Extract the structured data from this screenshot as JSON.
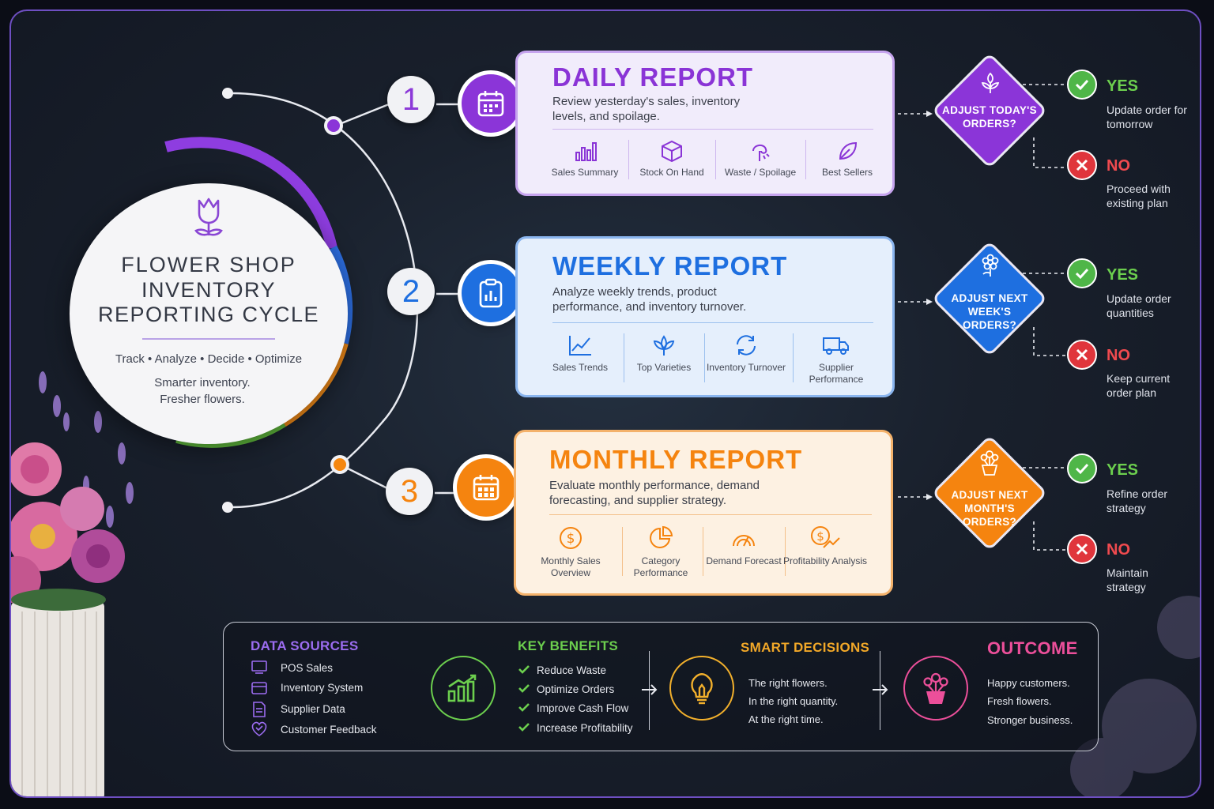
{
  "hero": {
    "title_line1": "FLOWER SHOP",
    "title_line2": "INVENTORY",
    "title_line3": "REPORTING CYCLE",
    "tagline": "Track • Analyze • Decide • Optimize",
    "sub_line1": "Smarter inventory.",
    "sub_line2": "Fresher flowers.",
    "icon": "tulip-icon"
  },
  "colors": {
    "daily": "#8a34d6",
    "weekly": "#1e6fe0",
    "monthly": "#f5840f",
    "yes": "#4fb648",
    "no": "#e0353c",
    "background": "#1a202c"
  },
  "reports": [
    {
      "step": "1",
      "title": "DAILY REPORT",
      "desc": "Review yesterday's sales, inventory levels, and spoilage.",
      "icon": "calendar-icon",
      "metrics": [
        "Sales Summary",
        "Stock On Hand",
        "Waste / Spoilage",
        "Best Sellers"
      ],
      "decision": "ADJUST TODAY'S ORDERS?",
      "yes_label": "YES",
      "yes_text": "Update order for tomorrow",
      "no_label": "NO",
      "no_text": "Proceed with existing plan"
    },
    {
      "step": "2",
      "title": "WEEKLY REPORT",
      "desc": "Analyze weekly trends, product performance, and inventory turnover.",
      "icon": "clipboard-chart-icon",
      "metrics": [
        "Sales Trends",
        "Top Varieties",
        "Inventory Turnover",
        "Supplier Performance"
      ],
      "decision": "ADJUST NEXT WEEK'S ORDERS?",
      "yes_label": "YES",
      "yes_text": "Update order quantities",
      "no_label": "NO",
      "no_text": "Keep current order plan"
    },
    {
      "step": "3",
      "title": "MONTHLY REPORT",
      "desc": "Evaluate monthly performance, demand forecasting, and supplier strategy.",
      "icon": "calendar-grid-icon",
      "metrics": [
        "Monthly Sales Overview",
        "Category Performance",
        "Demand Forecast",
        "Profitability Analysis"
      ],
      "decision": "ADJUST NEXT MONTH'S ORDERS?",
      "yes_label": "YES",
      "yes_text": "Refine order strategy",
      "no_label": "NO",
      "no_text": "Maintain strategy"
    }
  ],
  "bottom": {
    "data_sources": {
      "title": "DATA SOURCES",
      "items": [
        "POS Sales",
        "Inventory System",
        "Supplier Data",
        "Customer Feedback"
      ]
    },
    "key_benefits": {
      "title": "KEY BENEFITS",
      "items": [
        "Reduce Waste",
        "Optimize Orders",
        "Improve Cash Flow",
        "Increase Profitability"
      ]
    },
    "smart_decisions": {
      "title": "SMART  DECISIONS",
      "items": [
        "The right flowers.",
        "In the right quantity.",
        "At the right time."
      ]
    },
    "outcome": {
      "title": "OUTCOME",
      "items": [
        "Happy customers.",
        "Fresh flowers.",
        "Stronger business."
      ]
    }
  }
}
